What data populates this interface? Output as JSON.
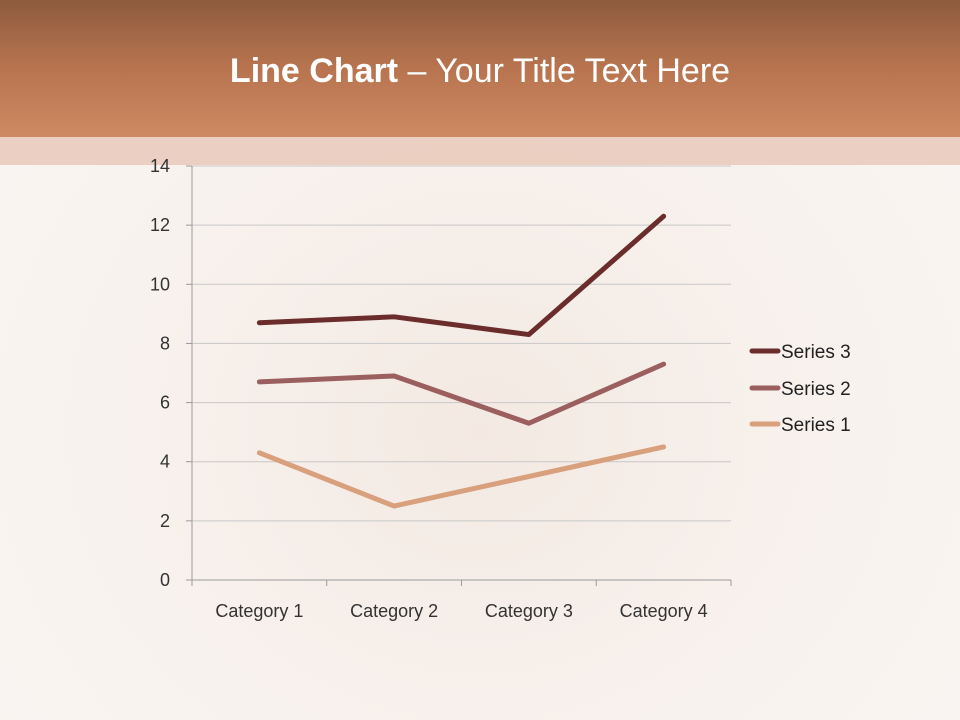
{
  "slide": {
    "title_bold": "Line Chart",
    "title_rest": " – Your Title Text Here"
  },
  "chart_data": {
    "type": "line",
    "stacked": true,
    "categories": [
      "Category 1",
      "Category 2",
      "Category 3",
      "Category 4"
    ],
    "series": [
      {
        "name": "Series 1",
        "values": [
          4.3,
          2.5,
          3.5,
          4.5
        ],
        "color": "#d9a07e"
      },
      {
        "name": "Series 2",
        "values": [
          2.4,
          4.4,
          1.8,
          2.8
        ],
        "color": "#9c5f5f"
      },
      {
        "name": "Series 3",
        "values": [
          2,
          2,
          3,
          5
        ],
        "color": "#6b2c2c"
      }
    ],
    "ylim": [
      0,
      14
    ],
    "yticks": [
      0,
      2,
      4,
      6,
      8,
      10,
      12,
      14
    ],
    "grid": true,
    "legend": "right"
  }
}
